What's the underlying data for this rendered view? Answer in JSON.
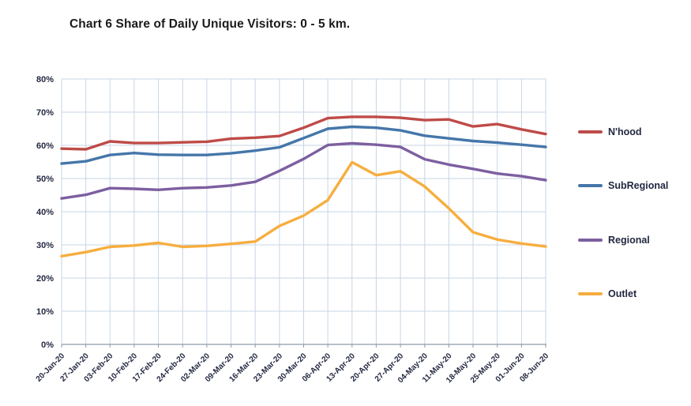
{
  "title": "Chart 6 Share of Daily Unique Visitors: 0 - 5 km.",
  "colors": {
    "grid": "#c7d5e6",
    "axis": "#8c9baa",
    "text": "#232840",
    "title_text": "#1a1a1a",
    "background": "#ffffff"
  },
  "chart_data": {
    "type": "line",
    "title": "Chart 6 Share of Daily Unique Visitors: 0 - 5 km.",
    "xlabel": "",
    "ylabel": "",
    "ylim": [
      0,
      80
    ],
    "y_tick_step": 10,
    "y_tick_labels": [
      "0%",
      "10%",
      "20%",
      "30%",
      "40%",
      "50%",
      "60%",
      "70%",
      "80%"
    ],
    "grid": true,
    "legend_position": "right",
    "categories": [
      "20-Jan-20",
      "27-Jan-20",
      "03-Feb-20",
      "10-Feb-20",
      "17-Feb-20",
      "24-Feb-20",
      "02-Mar-20",
      "09-Mar-20",
      "16-Mar-20",
      "23-Mar-20",
      "30-Mar-20",
      "06-Apr-20",
      "13-Apr-20",
      "20-Apr-20",
      "27-Apr-20",
      "04-May-20",
      "11-May-20",
      "18-May-20",
      "25-May-20",
      "01-Jun-20",
      "08-Jun-20"
    ],
    "series": [
      {
        "name": "N'hood",
        "color": "#be4b48",
        "values": [
          59.0,
          58.8,
          61.2,
          60.7,
          60.7,
          60.9,
          61.1,
          62.0,
          62.3,
          62.8,
          65.3,
          68.2,
          68.6,
          68.6,
          68.3,
          67.6,
          67.8,
          65.7,
          66.4,
          64.8,
          63.4
        ]
      },
      {
        "name": "SubRegional",
        "color": "#4576a9",
        "values": [
          54.5,
          55.2,
          57.1,
          57.7,
          57.2,
          57.1,
          57.1,
          57.6,
          58.4,
          59.4,
          62.2,
          65.0,
          65.6,
          65.3,
          64.5,
          62.9,
          62.1,
          61.3,
          60.8,
          60.2,
          59.5
        ]
      },
      {
        "name": "Regional",
        "color": "#7d5fa0",
        "values": [
          44.0,
          45.1,
          47.1,
          46.9,
          46.6,
          47.1,
          47.3,
          47.9,
          49.0,
          52.3,
          55.9,
          60.1,
          60.6,
          60.2,
          59.5,
          55.8,
          54.2,
          52.9,
          51.5,
          50.7,
          49.5
        ]
      },
      {
        "name": "Outlet",
        "color": "#f6ae3f",
        "values": [
          26.6,
          27.8,
          29.4,
          29.8,
          30.6,
          29.4,
          29.7,
          30.3,
          31.0,
          35.7,
          38.8,
          43.5,
          54.9,
          51.0,
          52.2,
          47.6,
          41.0,
          33.8,
          31.6,
          30.4,
          29.5
        ]
      }
    ]
  }
}
